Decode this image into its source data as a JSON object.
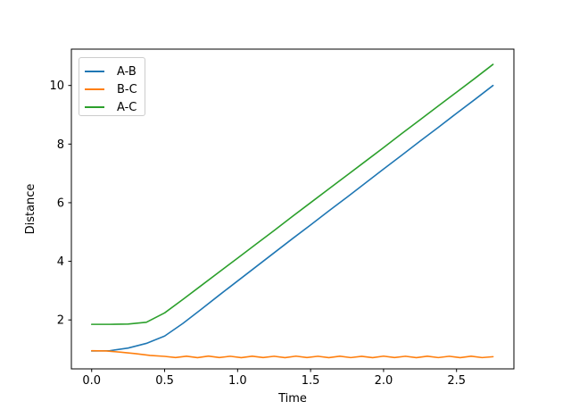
{
  "window": {
    "background": "#ffffff"
  },
  "chart_data": {
    "type": "line",
    "title": "",
    "xlabel": "Time",
    "ylabel": "Distance",
    "xlim": [
      -0.139,
      2.893
    ],
    "ylim": [
      0.33,
      11.24
    ],
    "grid": false,
    "legend_position": "upper-left",
    "x_ticks": {
      "values": [
        0.0,
        0.5,
        1.0,
        1.5,
        2.0,
        2.5
      ],
      "labels": [
        "0.0",
        "0.5",
        "1.0",
        "1.5",
        "2.0",
        "2.5"
      ]
    },
    "y_ticks": {
      "values": [
        2,
        4,
        6,
        8,
        10
      ],
      "labels": [
        "2",
        "4",
        "6",
        "8",
        "10"
      ]
    },
    "series": [
      {
        "name": "A-B",
        "color": "#1f77b4",
        "x": [
          0,
          0.125,
          0.25,
          0.375,
          0.5,
          0.625,
          0.75,
          0.875,
          1.0,
          1.125,
          1.25,
          1.375,
          1.5,
          1.625,
          1.75,
          1.875,
          2.0,
          2.125,
          2.25,
          2.375,
          2.5,
          2.625,
          2.75
        ],
        "y": [
          0.94,
          0.95,
          1.04,
          1.2,
          1.45,
          1.88,
          2.36,
          2.85,
          3.33,
          3.81,
          4.29,
          4.77,
          5.24,
          5.72,
          6.19,
          6.67,
          7.15,
          7.62,
          8.1,
          8.57,
          9.05,
          9.52,
          10.0
        ]
      },
      {
        "name": "B-C",
        "color": "#ff7f0e",
        "x": [
          0,
          0.1,
          0.2,
          0.3,
          0.4,
          0.5,
          0.575,
          0.65,
          0.725,
          0.8,
          0.875,
          0.95,
          1.025,
          1.1,
          1.175,
          1.25,
          1.325,
          1.4,
          1.475,
          1.55,
          1.625,
          1.7,
          1.775,
          1.85,
          1.925,
          2.0,
          2.075,
          2.15,
          2.225,
          2.3,
          2.375,
          2.45,
          2.525,
          2.6,
          2.675,
          2.75
        ],
        "y": [
          0.95,
          0.94,
          0.9,
          0.85,
          0.79,
          0.757,
          0.716,
          0.762,
          0.714,
          0.765,
          0.718,
          0.76,
          0.713,
          0.763,
          0.716,
          0.76,
          0.712,
          0.764,
          0.717,
          0.761,
          0.714,
          0.762,
          0.715,
          0.759,
          0.712,
          0.764,
          0.716,
          0.76,
          0.713,
          0.763,
          0.715,
          0.761,
          0.713,
          0.762,
          0.715,
          0.745
        ]
      },
      {
        "name": "A-C",
        "color": "#2ca02c",
        "x": [
          0,
          0.125,
          0.25,
          0.375,
          0.5,
          0.625,
          0.75,
          0.875,
          1.0,
          1.125,
          1.25,
          1.375,
          1.5,
          1.625,
          1.75,
          1.875,
          2.0,
          2.125,
          2.25,
          2.375,
          2.5,
          2.625,
          2.75
        ],
        "y": [
          1.85,
          1.85,
          1.86,
          1.92,
          2.24,
          2.7,
          3.17,
          3.64,
          4.11,
          4.58,
          5.05,
          5.53,
          6.0,
          6.47,
          6.94,
          7.41,
          7.88,
          8.36,
          8.83,
          9.3,
          9.77,
          10.24,
          10.72
        ]
      }
    ]
  }
}
